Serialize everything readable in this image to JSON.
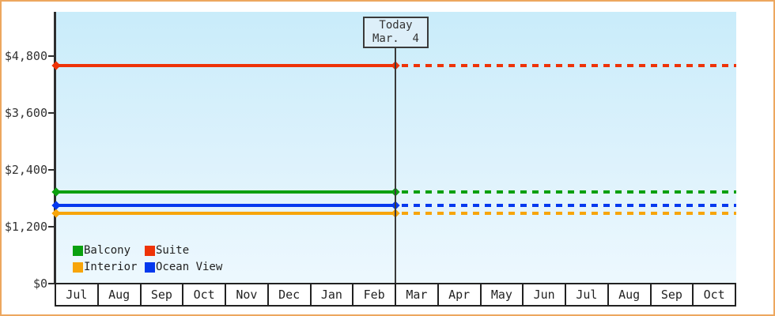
{
  "chart_data": {
    "type": "line",
    "title": "",
    "description": "Cruise cabin price history by category; solid lines are past prices, dotted lines are projected prices after today",
    "x": {
      "months": [
        "Jul",
        "Aug",
        "Sep",
        "Oct",
        "Nov",
        "Dec",
        "Jan",
        "Feb",
        "Mar",
        "Apr",
        "May",
        "Jun",
        "Jul",
        "Aug",
        "Sep",
        "Oct"
      ]
    },
    "y": {
      "ticks": [
        {
          "label": "$0",
          "value": 0
        },
        {
          "label": "$1,200",
          "value": 1200
        },
        {
          "label": "$2,400",
          "value": 2400
        },
        {
          "label": "$3,600",
          "value": 3600
        },
        {
          "label": "$4,800",
          "value": 4800
        }
      ],
      "ylim": [
        0,
        5730
      ],
      "prefix": "$"
    },
    "today": {
      "line1": "Today",
      "line2": "Mar.  4",
      "month_index": 8
    },
    "series": [
      {
        "name": "Balcony",
        "color": "#0aa00f",
        "value": 1940,
        "value_is_estimate": true
      },
      {
        "name": "Suite",
        "color": "#ee3308",
        "value": 4600,
        "value_is_estimate": true
      },
      {
        "name": "Interior",
        "color": "#f7a50a",
        "value": 1480,
        "value_is_estimate": true
      },
      {
        "name": "Ocean View",
        "color": "#0439ee",
        "value": 1650,
        "value_is_estimate": true
      }
    ],
    "legend": {
      "entries": [
        "Balcony",
        "Suite",
        "Interior",
        "Ocean View"
      ],
      "position": "bottom-left",
      "columns": 2
    },
    "style": {
      "frame_border": "#eda75f",
      "plot_bg_top": "#c9ecfa",
      "plot_bg_bottom": "#edf8fe",
      "axis_color": "#2e2e2e",
      "text_color": "#333333"
    }
  }
}
